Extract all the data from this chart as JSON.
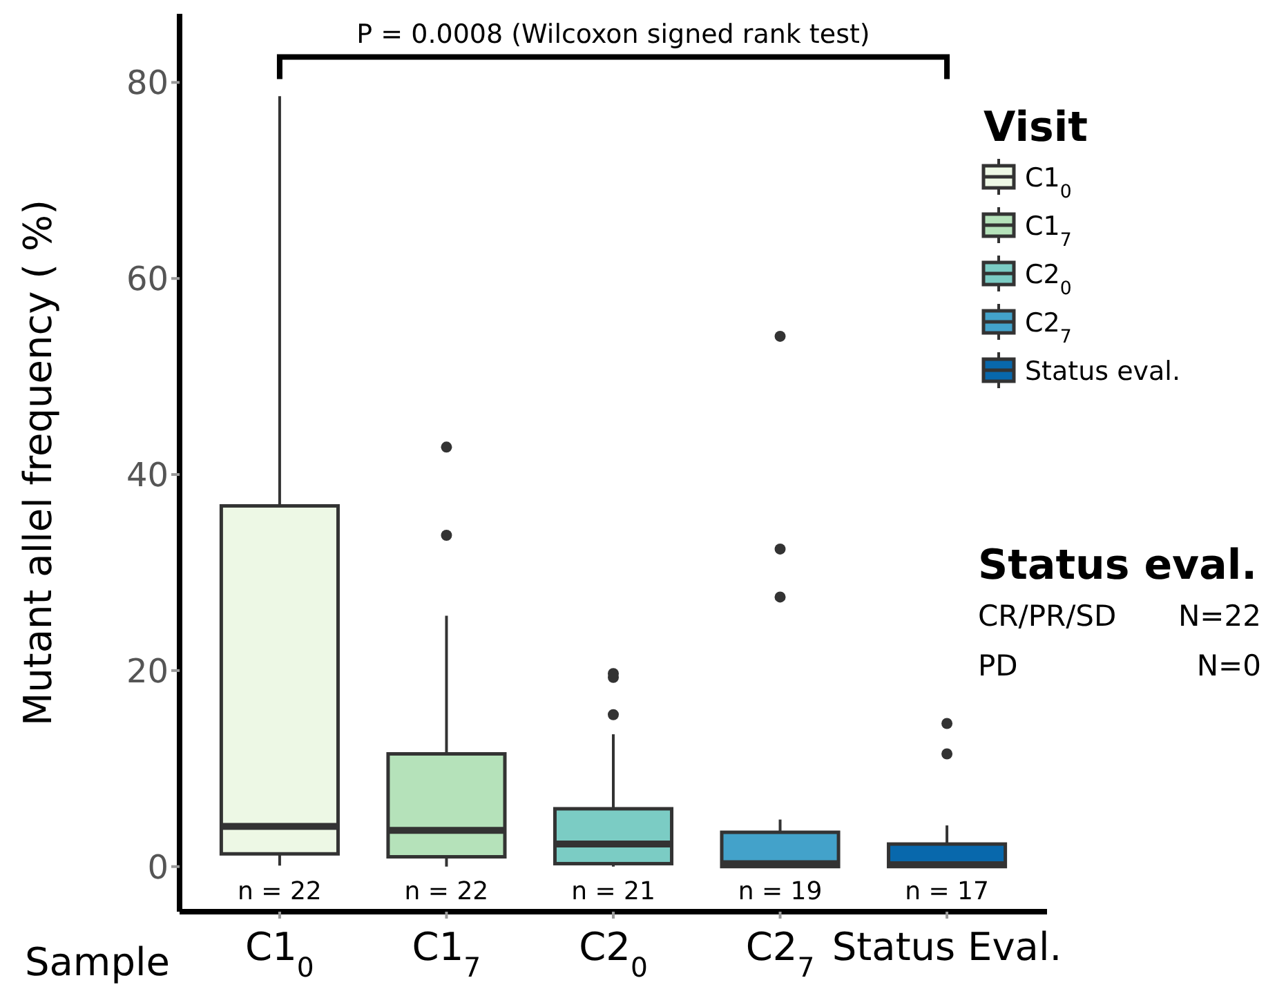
{
  "chart_data": {
    "type": "box",
    "categories": [
      "C1$_{0}$",
      "C1$_{7}$",
      "C2$_{0}$",
      "C2$_{7}$",
      "Status Eval."
    ],
    "xlabel": "Sample",
    "ylabel": "Mutant allel frequency ( %)",
    "legend_title": "Visit",
    "legend": "right",
    "ylim": [
      -4.6,
      87
    ],
    "yticks": [
      0,
      20,
      40,
      60,
      80
    ],
    "series": [
      {
        "name": "C1$_{0}$",
        "color": "#edf8e5",
        "boxes": [
          {
            "low": 0.1,
            "q1": 1.3,
            "median": 4.1,
            "q3": 36.8,
            "high": 78.6
          },
          null,
          null,
          null,
          null
        ]
      },
      {
        "name": "C1$_{7}$",
        "color": "#b5e2ba",
        "boxes": [
          null,
          {
            "low": 0,
            "q1": 1,
            "median": 3.7,
            "q3": 11.5,
            "high": 25.6,
            "outliers": [
              33.8,
              42.8
            ]
          },
          null,
          null,
          null
        ]
      },
      {
        "name": "C2$_{0}$",
        "color": "#7bccc4",
        "boxes": [
          null,
          null,
          {
            "low": 0,
            "q1": 0.3,
            "median": 2.3,
            "q3": 5.9,
            "high": 13.5,
            "outliers": [
              15.5,
              19.3,
              19.7
            ]
          },
          null,
          null
        ]
      },
      {
        "name": "C2$_{7}$",
        "color": "#43a2ca",
        "boxes": [
          null,
          null,
          null,
          {
            "low": 0,
            "q1": 0,
            "median": 0.3,
            "q3": 3.5,
            "high": 4.8,
            "outliers": [
              27.5,
              32.4,
              54.1
            ]
          },
          null
        ]
      },
      {
        "name": "Status eval.",
        "color": "#0868ac",
        "boxes": [
          null,
          null,
          null,
          null,
          {
            "low": 0,
            "q1": 0,
            "median": 0.2,
            "q3": 2.3,
            "high": 4.2,
            "outliers": [
              11.5,
              14.6
            ]
          }
        ]
      }
    ],
    "annotations": [
      "P = 0.0008 (Wilcoxon signed rank test)",
      "Status eval.",
      "CR/PR/SD N=22",
      "PD N=0",
      "n = 22",
      "n = 22",
      "n = 21",
      "n = 19",
      "n = 17"
    ]
  }
}
